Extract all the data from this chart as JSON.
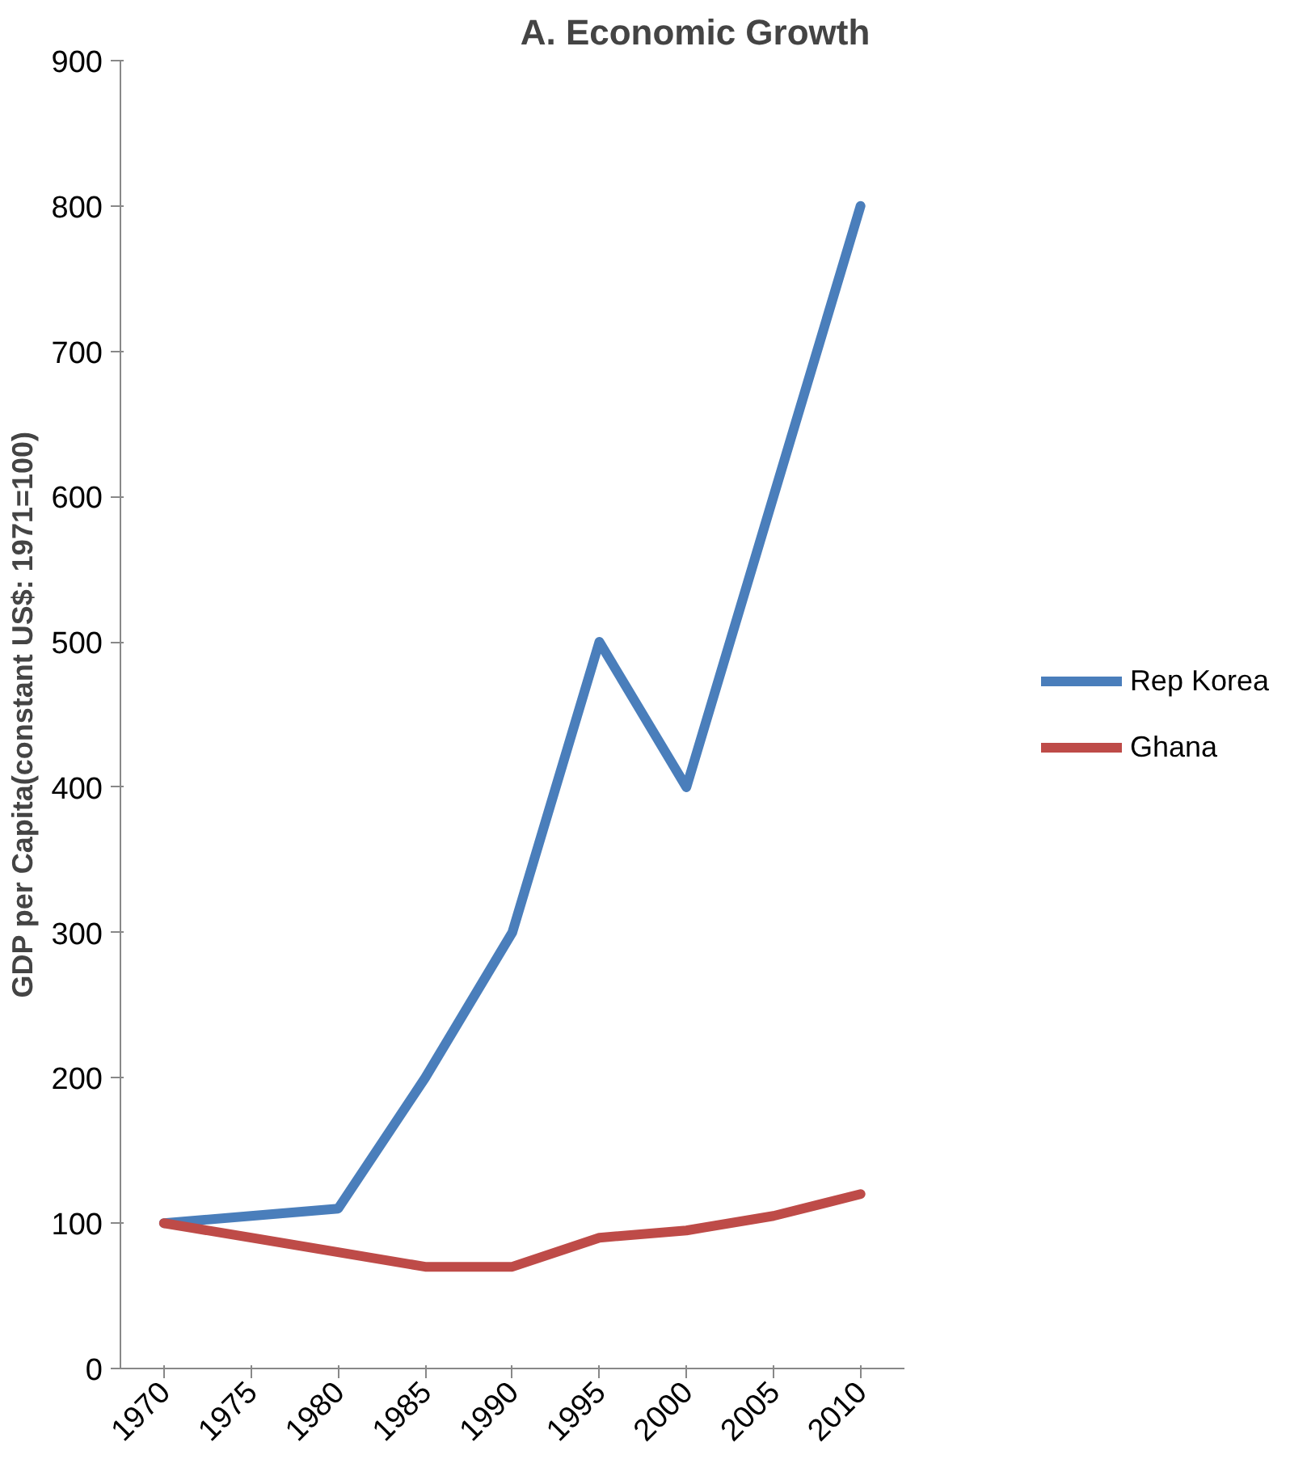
{
  "chart_data": {
    "type": "line",
    "title": "A. Economic Growth",
    "ylabel": "GDP per Capita(constant US$: 1971=100)",
    "categories": [
      "1970",
      "1975",
      "1980",
      "1985",
      "1990",
      "1995",
      "2000",
      "2005",
      "2010"
    ],
    "series": [
      {
        "name": "Rep Korea",
        "color": "#4a7ebb",
        "values": [
          100,
          105,
          110,
          200,
          300,
          500,
          400,
          600,
          800
        ]
      },
      {
        "name": "Ghana",
        "color": "#be4b48",
        "values": [
          100,
          90,
          80,
          70,
          70,
          90,
          95,
          105,
          120
        ]
      }
    ],
    "ylim": [
      0,
      900
    ],
    "yticks": [
      0,
      100,
      200,
      300,
      400,
      500,
      600,
      700,
      800,
      900
    ],
    "grid": false,
    "legend": "right",
    "marker": "none",
    "line_style": "solid"
  }
}
